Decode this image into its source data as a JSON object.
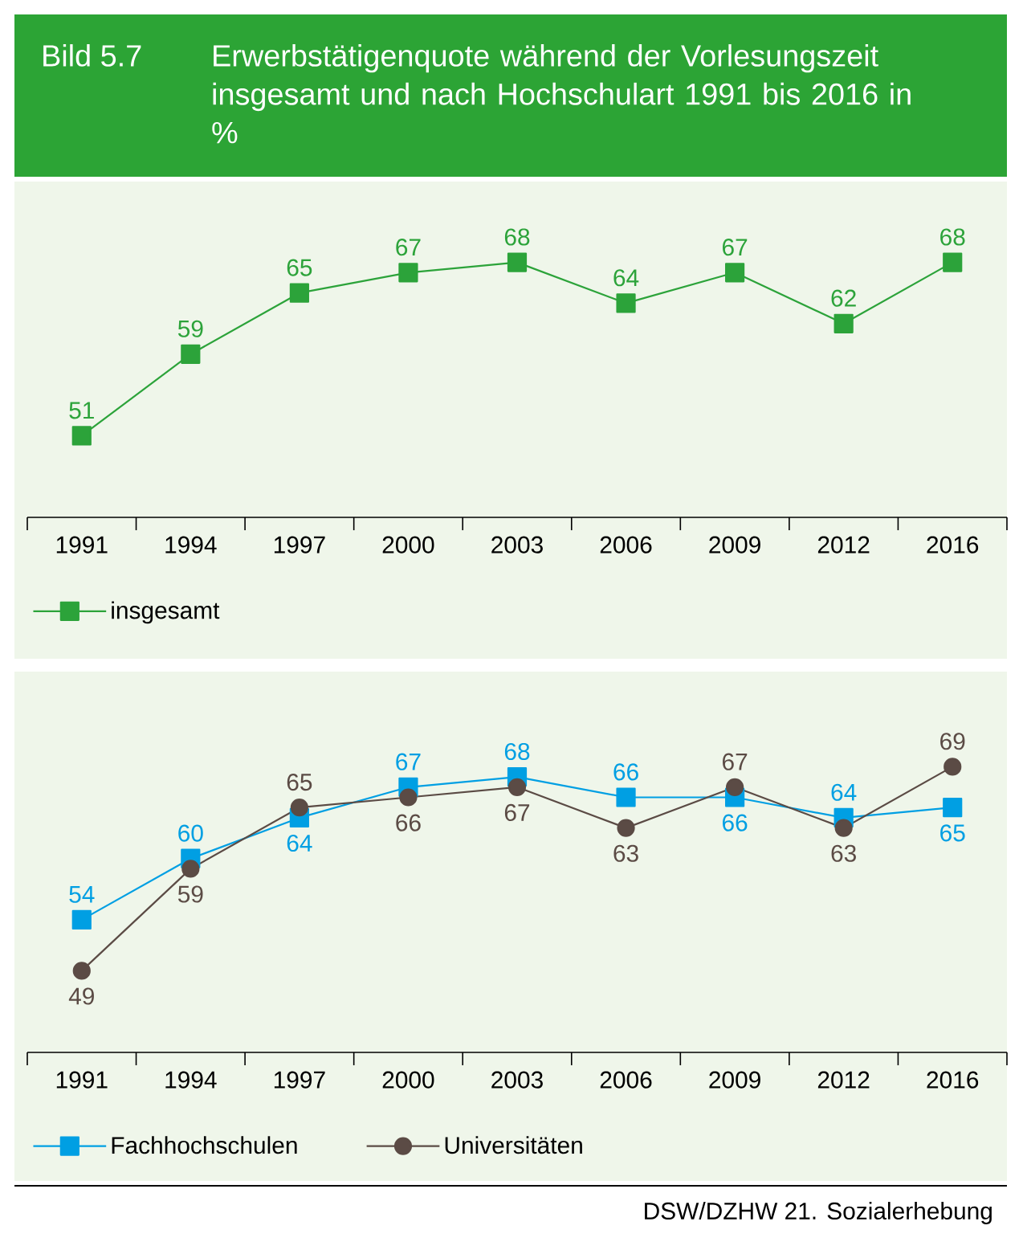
{
  "chart_data": [
    {
      "type": "line",
      "title": "Erwerbstätigenquote während der Vorlesungszeit insgesamt und nach Hochschulart 1991 bis 2016 in %",
      "annotations": [
        "Bild 5.7"
      ],
      "categories": [
        "1991",
        "1994",
        "1997",
        "2000",
        "2003",
        "2006",
        "2009",
        "2012",
        "2016"
      ],
      "series": [
        {
          "name": "insgesamt",
          "color": "#2ca33a",
          "marker": "square",
          "values": [
            51,
            59,
            65,
            67,
            68,
            64,
            67,
            62,
            68
          ]
        }
      ],
      "data_labels": true,
      "legend": "bottom left"
    },
    {
      "type": "line",
      "annotations": [
        "DSW/DZHW 21. Sozialerhebung"
      ],
      "categories": [
        "1991",
        "1994",
        "1997",
        "2000",
        "2003",
        "2006",
        "2009",
        "2012",
        "2016"
      ],
      "series": [
        {
          "name": "Fachhochschulen",
          "color": "#009fe3",
          "marker": "square",
          "values": [
            54,
            60,
            64,
            67,
            68,
            66,
            66,
            64,
            65
          ]
        },
        {
          "name": "Universitäten",
          "color": "#5b4b45",
          "marker": "circle",
          "values": [
            49,
            59,
            65,
            66,
            67,
            63,
            67,
            63,
            69
          ]
        }
      ],
      "data_labels": true,
      "legend": "bottom left"
    }
  ]
}
